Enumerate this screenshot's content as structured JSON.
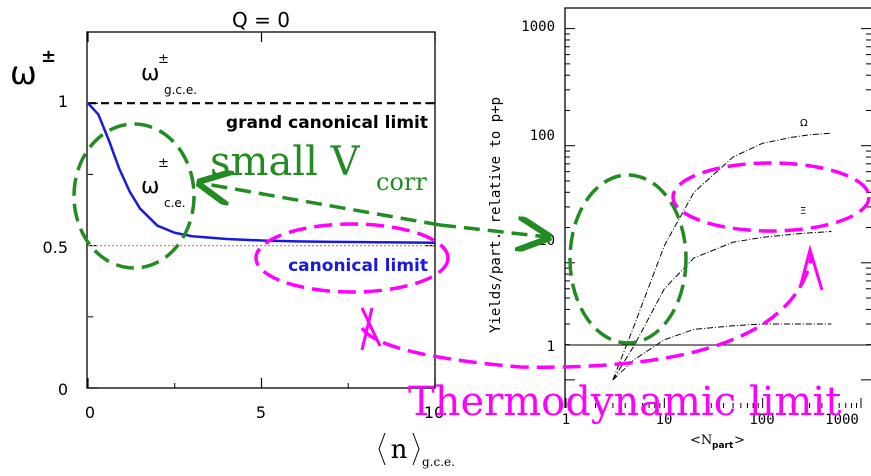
{
  "chart_data": [
    {
      "type": "line",
      "title": "Q = 0",
      "ylabel": "ω±",
      "xlabel": "⟨n⟩g.c.e.",
      "xlim": [
        0,
        10
      ],
      "ylim": [
        0,
        1.25
      ],
      "xticks": [
        "0",
        "5",
        "10"
      ],
      "yticks": [
        "0",
        "0.5",
        "1"
      ],
      "series": [
        {
          "name": "ω±g.c.e.",
          "style": "dashed",
          "color": "#000000",
          "x": [
            0,
            10
          ],
          "y": [
            1,
            1
          ]
        },
        {
          "name": "ω±c.e.",
          "style": "solid",
          "color": "#1a1adc",
          "x": [
            0,
            0.3,
            0.6,
            0.9,
            1.2,
            1.5,
            2,
            2.5,
            3,
            4,
            5,
            6,
            7,
            8,
            10
          ],
          "y": [
            1,
            0.96,
            0.87,
            0.77,
            0.69,
            0.63,
            0.57,
            0.545,
            0.533,
            0.523,
            0.518,
            0.515,
            0.513,
            0.512,
            0.51
          ]
        },
        {
          "name": "0.5 reference",
          "style": "dotted",
          "color": "#e88080",
          "x": [
            0,
            10
          ],
          "y": [
            0.5,
            0.5
          ]
        }
      ],
      "annotations": {
        "grand_canonical": "grand canonical limit",
        "canonical": "canonical limit"
      },
      "labels": {
        "omega": "ω",
        "pm": "±",
        "gce": "g.c.e.",
        "ce": "c.e.",
        "xlabel_n": "n",
        "xlabel_sub": "g.c.e."
      }
    },
    {
      "type": "line",
      "log_x": true,
      "log_y": true,
      "xlabel": "<Npart>",
      "ylabel": "Yields/part. relative to p+p",
      "xlim": [
        1,
        1000
      ],
      "ylim": [
        0.7,
        1500
      ],
      "xticks": [
        "1",
        "10",
        "100",
        "1000"
      ],
      "yticks": [
        "1",
        "10",
        "100",
        "1000"
      ],
      "series": [
        {
          "name": "Ω",
          "style": "dash-dot",
          "x": [
            3,
            5,
            10,
            20,
            50,
            100,
            200,
            300,
            500
          ],
          "y": [
            1,
            3,
            14,
            40,
            80,
            105,
            118,
            124,
            128
          ]
        },
        {
          "name": "Ξ",
          "style": "dash-dot",
          "x": [
            3,
            5,
            10,
            20,
            50,
            100,
            200,
            300,
            500
          ],
          "y": [
            1,
            2,
            6,
            11,
            15,
            16.5,
            17.5,
            18,
            18.5
          ]
        },
        {
          "name": "Λ",
          "style": "dash-dot",
          "x": [
            3,
            5,
            10,
            20,
            50,
            100,
            200,
            300,
            500
          ],
          "y": [
            1,
            1.5,
            2.2,
            2.7,
            2.9,
            3,
            3,
            3,
            3
          ]
        }
      ],
      "labels": {
        "xlabel_N": "<N",
        "xlabel_sub": "part",
        "xlabel_close": ">",
        "omega": "Ω",
        "xi": "Ξ"
      }
    }
  ],
  "overlay": {
    "small_v": "small V",
    "small_v_sub": "corr",
    "thermo": "Thermodynamic limit"
  },
  "colors": {
    "green": "#228b22",
    "magenta": "#ff00ff",
    "blue": "#1a1adc"
  }
}
